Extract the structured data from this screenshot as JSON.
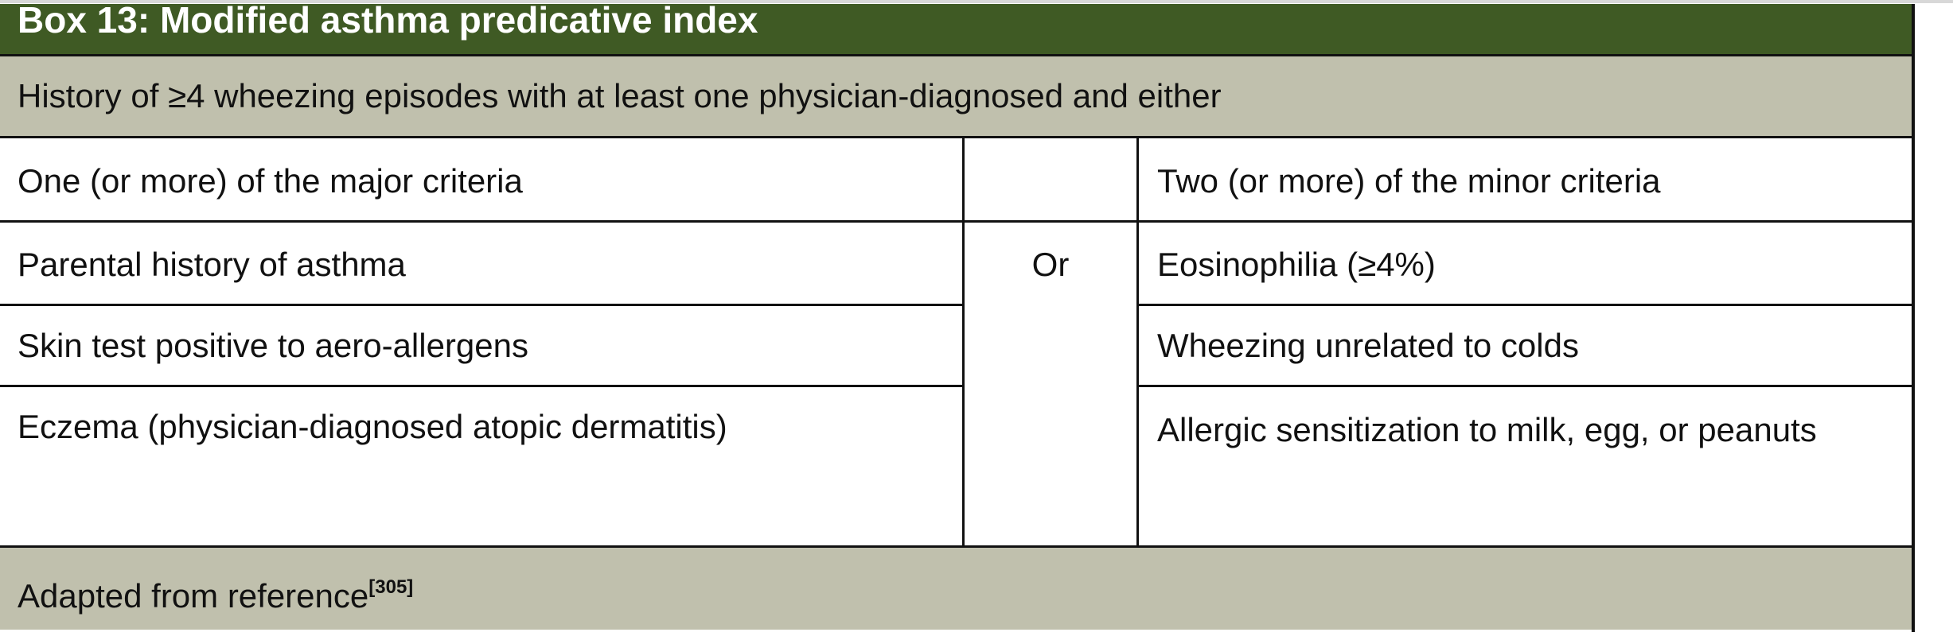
{
  "title": "Box 13: Modified asthma predicative index",
  "subtitle": "History of ≥4 wheezing episodes with at least one physician-diagnosed and either",
  "connector": "Or",
  "major": {
    "header": "One (or more) of the major criteria",
    "items": [
      "Parental history of asthma",
      "Skin test positive to aero-allergens",
      "Eczema (physician-diagnosed atopic dermatitis)"
    ]
  },
  "minor": {
    "header": "Two (or more) of the minor criteria",
    "items": [
      "Eosinophilia (≥4%)",
      "Wheezing unrelated to colds",
      "Allergic sensitization to milk, egg, or peanuts"
    ]
  },
  "footer": {
    "text": "Adapted from reference",
    "ref": "[305]"
  },
  "colors": {
    "title_bg": "#3f5a24",
    "band_bg": "#c0c0ad"
  }
}
